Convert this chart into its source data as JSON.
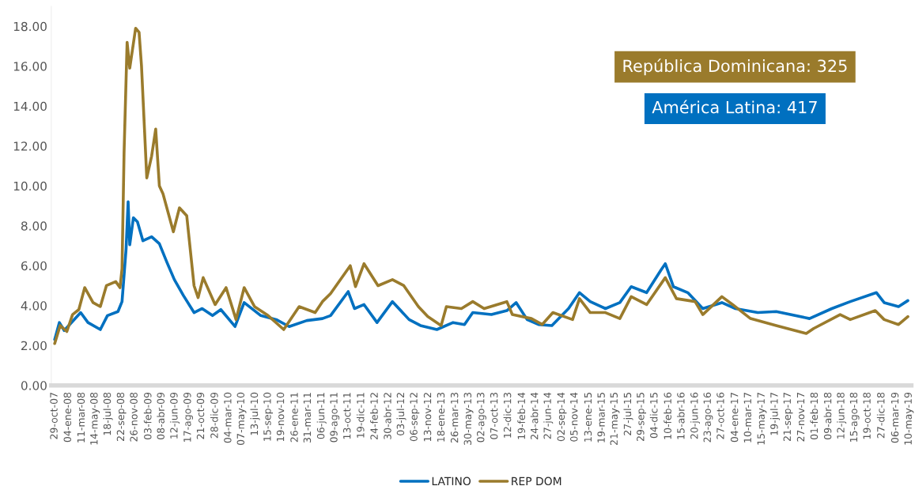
{
  "chart_data": {
    "type": "line",
    "annotations": [
      "República Dominicana: 325",
      "América Latina: 417"
    ],
    "legend": "bottom",
    "line_style": "solid",
    "grid": false,
    "ylim": [
      0,
      19
    ],
    "yticks": [
      {
        "value": 0,
        "label": "0.00"
      },
      {
        "value": 2,
        "label": "2.00"
      },
      {
        "value": 4,
        "label": "4.00"
      },
      {
        "value": 6,
        "label": "6.00"
      },
      {
        "value": 8,
        "label": "8.00"
      },
      {
        "value": 10,
        "label": "10.00"
      },
      {
        "value": 12,
        "label": "12.00"
      },
      {
        "value": 14,
        "label": "14.00"
      },
      {
        "value": 16,
        "label": "16.00"
      },
      {
        "value": 18,
        "label": "18.00"
      }
    ],
    "xlim": [
      "2007-10-12",
      "2019-05-22"
    ],
    "xticks": [
      {
        "value": "2007-10-29",
        "label": "29-oct-07"
      },
      {
        "value": "2008-01-04",
        "label": "04-ene-08"
      },
      {
        "value": "2008-03-11",
        "label": "11-mar-08"
      },
      {
        "value": "2008-05-14",
        "label": "14-may-08"
      },
      {
        "value": "2008-07-18",
        "label": "18-jul-08"
      },
      {
        "value": "2008-09-22",
        "label": "22-sep-08"
      },
      {
        "value": "2008-11-26",
        "label": "26-nov-08"
      },
      {
        "value": "2009-02-03",
        "label": "03-feb-09"
      },
      {
        "value": "2009-04-08",
        "label": "08-abr-09"
      },
      {
        "value": "2009-06-12",
        "label": "12-jun-09"
      },
      {
        "value": "2009-08-17",
        "label": "17-ago-09"
      },
      {
        "value": "2009-10-21",
        "label": "21-oct-09"
      },
      {
        "value": "2009-12-28",
        "label": "28-dic-09"
      },
      {
        "value": "2010-03-04",
        "label": "04-mar-10"
      },
      {
        "value": "2010-05-07",
        "label": "07-may-10"
      },
      {
        "value": "2010-07-13",
        "label": "13-jul-10"
      },
      {
        "value": "2010-09-15",
        "label": "15-sep-10"
      },
      {
        "value": "2010-11-19",
        "label": "19-nov-10"
      },
      {
        "value": "2011-01-26",
        "label": "26-ene-11"
      },
      {
        "value": "2011-03-31",
        "label": "31-mar-11"
      },
      {
        "value": "2011-06-06",
        "label": "06-jun-11"
      },
      {
        "value": "2011-08-09",
        "label": "09-ago-11"
      },
      {
        "value": "2011-10-13",
        "label": "13-oct-11"
      },
      {
        "value": "2011-12-19",
        "label": "19-dic-11"
      },
      {
        "value": "2012-02-24",
        "label": "24-feb-12"
      },
      {
        "value": "2012-04-30",
        "label": "30-abr-12"
      },
      {
        "value": "2012-07-03",
        "label": "03-jul-12"
      },
      {
        "value": "2012-09-06",
        "label": "06-sep-12"
      },
      {
        "value": "2012-11-13",
        "label": "13-nov-12"
      },
      {
        "value": "2013-01-18",
        "label": "18-ene-13"
      },
      {
        "value": "2013-03-26",
        "label": "26-mar-13"
      },
      {
        "value": "2013-05-30",
        "label": "30-may-13"
      },
      {
        "value": "2013-08-02",
        "label": "02-ago-13"
      },
      {
        "value": "2013-10-07",
        "label": "07-oct-13"
      },
      {
        "value": "2013-12-12",
        "label": "12-dic-13"
      },
      {
        "value": "2014-02-19",
        "label": "19-feb-14"
      },
      {
        "value": "2014-04-24",
        "label": "24-abr-14"
      },
      {
        "value": "2014-06-27",
        "label": "27-jun-14"
      },
      {
        "value": "2014-09-02",
        "label": "02-sep-14"
      },
      {
        "value": "2014-11-05",
        "label": "05-nov-14"
      },
      {
        "value": "2015-01-13",
        "label": "13-ene-15"
      },
      {
        "value": "2015-03-19",
        "label": "19-mar-15"
      },
      {
        "value": "2015-05-21",
        "label": "21-may-15"
      },
      {
        "value": "2015-07-27",
        "label": "27-jul-15"
      },
      {
        "value": "2015-09-29",
        "label": "29-sep-15"
      },
      {
        "value": "2015-12-04",
        "label": "04-dic-15"
      },
      {
        "value": "2016-02-10",
        "label": "10-feb-16"
      },
      {
        "value": "2016-04-15",
        "label": "15-abr-16"
      },
      {
        "value": "2016-06-20",
        "label": "20-jun-16"
      },
      {
        "value": "2016-08-23",
        "label": "23-ago-16"
      },
      {
        "value": "2016-10-27",
        "label": "27-oct-16"
      },
      {
        "value": "2017-01-04",
        "label": "04-ene-17"
      },
      {
        "value": "2017-03-10",
        "label": "10-mar-17"
      },
      {
        "value": "2017-05-15",
        "label": "15-may-17"
      },
      {
        "value": "2017-07-19",
        "label": "19-jul-17"
      },
      {
        "value": "2017-09-21",
        "label": "21-sep-17"
      },
      {
        "value": "2017-11-27",
        "label": "27-nov-17"
      },
      {
        "value": "2018-02-01",
        "label": "01-feb-18"
      },
      {
        "value": "2018-04-09",
        "label": "09-abr-18"
      },
      {
        "value": "2018-06-12",
        "label": "12-jun-18"
      },
      {
        "value": "2018-08-15",
        "label": "15-ago-18"
      },
      {
        "value": "2018-10-19",
        "label": "19-oct-18"
      },
      {
        "value": "2018-12-27",
        "label": "27-dic-18"
      },
      {
        "value": "2019-03-06",
        "label": "06-mar-19"
      },
      {
        "value": "2019-05-10",
        "label": "10-may-19"
      }
    ],
    "series": [
      {
        "name": "LATINO",
        "color": "#0070c0",
        "x": [
          "2007-10-29",
          "2007-11-21",
          "2007-12-15",
          "2008-01-15",
          "2008-03-05",
          "2008-04-10",
          "2008-06-10",
          "2008-07-15",
          "2008-09-05",
          "2008-09-25",
          "2008-10-15",
          "2008-10-25",
          "2008-11-02",
          "2008-11-20",
          "2008-12-10",
          "2009-01-06",
          "2009-02-18",
          "2009-03-28",
          "2009-05-05",
          "2009-06-10",
          "2009-07-25",
          "2009-09-15",
          "2009-10-25",
          "2009-12-15",
          "2010-01-25",
          "2010-04-05",
          "2010-05-20",
          "2010-08-10",
          "2010-10-25",
          "2010-12-28",
          "2011-03-25",
          "2011-06-10",
          "2011-07-20",
          "2011-10-15",
          "2011-11-15",
          "2012-01-01",
          "2012-03-05",
          "2012-05-20",
          "2012-08-10",
          "2012-10-05",
          "2012-12-25",
          "2013-03-15",
          "2013-05-10",
          "2013-06-20",
          "2013-09-20",
          "2013-12-05",
          "2014-01-20",
          "2014-03-15",
          "2014-05-10",
          "2014-07-15",
          "2014-10-05",
          "2014-11-28",
          "2015-01-20",
          "2015-04-05",
          "2015-06-15",
          "2015-08-10",
          "2015-10-25",
          "2016-01-05",
          "2016-01-25",
          "2016-03-05",
          "2016-05-15",
          "2016-07-28",
          "2016-10-30",
          "2017-01-05",
          "2017-04-25",
          "2017-07-25",
          "2018-01-05",
          "2018-04-25",
          "2018-07-25",
          "2018-12-01",
          "2019-01-08",
          "2019-03-20",
          "2019-05-05"
        ],
        "values": [
          2.3,
          3.15,
          2.75,
          3.1,
          3.65,
          3.15,
          2.8,
          3.5,
          3.7,
          4.2,
          6.85,
          9.2,
          7.05,
          8.4,
          8.2,
          7.25,
          7.45,
          7.1,
          6.15,
          5.3,
          4.5,
          3.65,
          3.85,
          3.5,
          3.8,
          2.95,
          4.15,
          3.5,
          3.3,
          2.95,
          3.25,
          3.35,
          3.5,
          4.7,
          3.85,
          4.05,
          3.15,
          4.2,
          3.3,
          3.0,
          2.8,
          3.15,
          3.05,
          3.65,
          3.55,
          3.75,
          4.15,
          3.3,
          3.05,
          3.0,
          3.85,
          4.65,
          4.2,
          3.85,
          4.15,
          4.95,
          4.65,
          5.8,
          6.1,
          4.95,
          4.65,
          3.85,
          4.15,
          3.85,
          3.65,
          3.7,
          3.35,
          3.85,
          4.2,
          4.65,
          4.15,
          3.95,
          4.25
        ]
      },
      {
        "name": "REP DOM",
        "color": "#9a7b2c",
        "x": [
          "2007-10-29",
          "2007-11-25",
          "2007-12-28",
          "2008-01-25",
          "2008-02-25",
          "2008-03-25",
          "2008-05-05",
          "2008-06-10",
          "2008-07-10",
          "2008-08-25",
          "2008-09-15",
          "2008-09-25",
          "2008-10-05",
          "2008-10-20",
          "2008-11-02",
          "2008-12-01",
          "2008-12-18",
          "2008-12-30",
          "2009-01-25",
          "2009-02-18",
          "2009-03-10",
          "2009-03-28",
          "2009-04-15",
          "2009-06-05",
          "2009-07-05",
          "2009-08-10",
          "2009-09-15",
          "2009-10-05",
          "2009-10-30",
          "2009-12-28",
          "2010-02-20",
          "2010-04-10",
          "2010-05-20",
          "2010-07-10",
          "2010-09-15",
          "2010-12-01",
          "2011-02-15",
          "2011-05-05",
          "2011-06-10",
          "2011-07-20",
          "2011-10-25",
          "2011-11-20",
          "2012-01-01",
          "2012-03-10",
          "2012-05-20",
          "2012-07-15",
          "2012-09-25",
          "2012-11-10",
          "2013-01-15",
          "2013-02-10",
          "2013-04-25",
          "2013-06-20",
          "2013-08-15",
          "2013-12-05",
          "2014-01-01",
          "2014-04-05",
          "2014-05-28",
          "2014-07-20",
          "2014-10-25",
          "2014-11-28",
          "2015-01-20",
          "2015-04-05",
          "2015-06-15",
          "2015-08-10",
          "2015-10-25",
          "2016-01-25",
          "2016-03-20",
          "2016-06-20",
          "2016-07-28",
          "2016-10-30",
          "2016-12-22",
          "2017-03-20",
          "2017-07-25",
          "2017-12-20",
          "2018-01-25",
          "2018-06-05",
          "2018-07-25",
          "2018-11-25",
          "2019-01-08",
          "2019-03-20",
          "2019-05-05"
        ],
        "values": [
          2.1,
          3.0,
          2.7,
          3.55,
          3.8,
          4.9,
          4.15,
          3.95,
          5.0,
          5.2,
          4.9,
          5.85,
          11.65,
          17.2,
          15.9,
          17.9,
          17.7,
          16.0,
          10.4,
          11.5,
          12.85,
          10.0,
          9.6,
          7.7,
          8.9,
          8.5,
          5.0,
          4.4,
          5.4,
          4.05,
          4.9,
          3.3,
          4.9,
          3.95,
          3.5,
          2.8,
          3.95,
          3.65,
          4.2,
          4.6,
          6.0,
          4.95,
          6.1,
          5.0,
          5.3,
          5.0,
          3.95,
          3.45,
          3.0,
          3.95,
          3.85,
          4.2,
          3.85,
          4.2,
          3.55,
          3.35,
          3.05,
          3.65,
          3.3,
          4.35,
          3.65,
          3.65,
          3.35,
          4.45,
          4.05,
          5.4,
          4.35,
          4.2,
          3.55,
          4.45,
          4.05,
          3.35,
          3.0,
          2.6,
          2.85,
          3.55,
          3.3,
          3.75,
          3.3,
          3.05,
          3.45
        ]
      }
    ]
  }
}
